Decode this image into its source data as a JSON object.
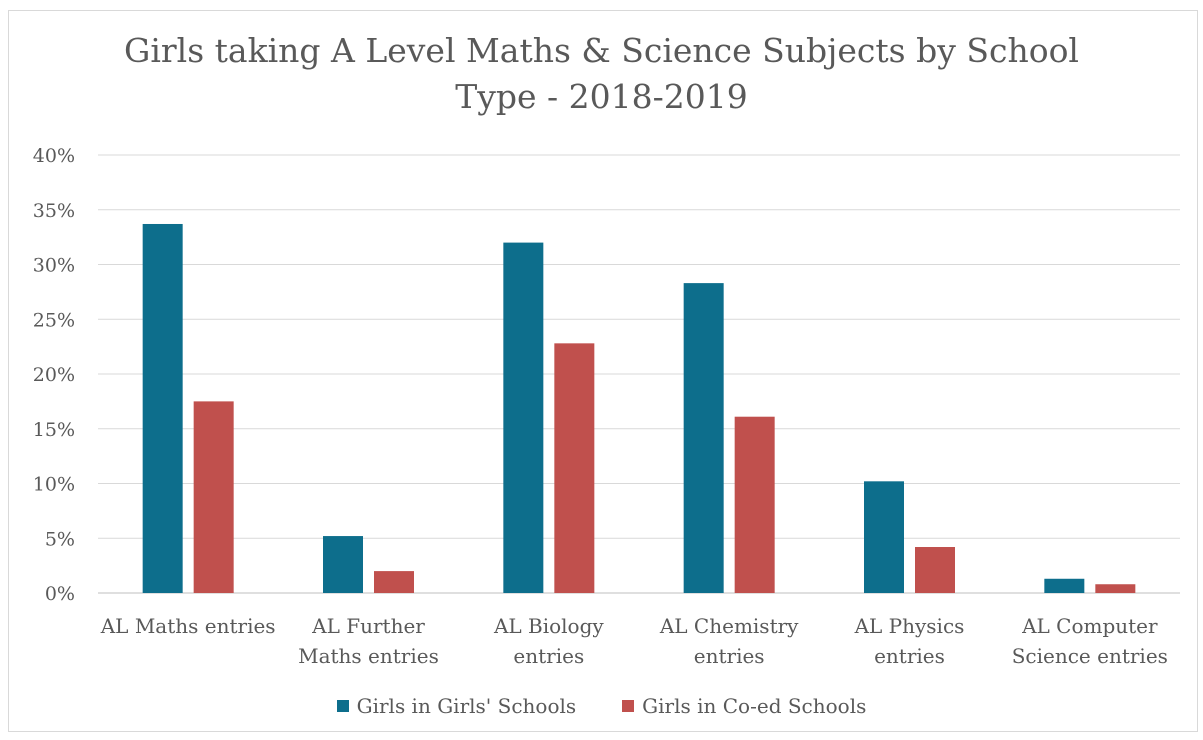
{
  "chart_data": {
    "type": "bar",
    "title_lines": [
      "Girls taking A Level Maths & Science Subjects by School",
      "Type - 2018-2019"
    ],
    "xlabel": "",
    "ylabel": "",
    "ylim": [
      0,
      40
    ],
    "yticks": [
      "0%",
      "5%",
      "10%",
      "15%",
      "20%",
      "25%",
      "30%",
      "35%",
      "40%"
    ],
    "ytick_values": [
      0,
      5,
      10,
      15,
      20,
      25,
      30,
      35,
      40
    ],
    "grid": true,
    "legend_position": "bottom",
    "categories": [
      [
        "AL Maths entries"
      ],
      [
        "AL Further",
        "Maths entries"
      ],
      [
        "AL Biology",
        "entries"
      ],
      [
        "AL Chemistry",
        "entries"
      ],
      [
        "AL Physics",
        "entries"
      ],
      [
        "AL Computer",
        "Science  entries"
      ]
    ],
    "series": [
      {
        "name": "Girls in Girls' Schools",
        "color": "#0d6e8c",
        "values": [
          33.7,
          5.2,
          32.0,
          28.3,
          10.2,
          1.3
        ]
      },
      {
        "name": "Girls in Co-ed Schools",
        "color": "#c0504d",
        "values": [
          17.5,
          2.0,
          22.8,
          16.1,
          4.2,
          0.8
        ]
      }
    ]
  }
}
